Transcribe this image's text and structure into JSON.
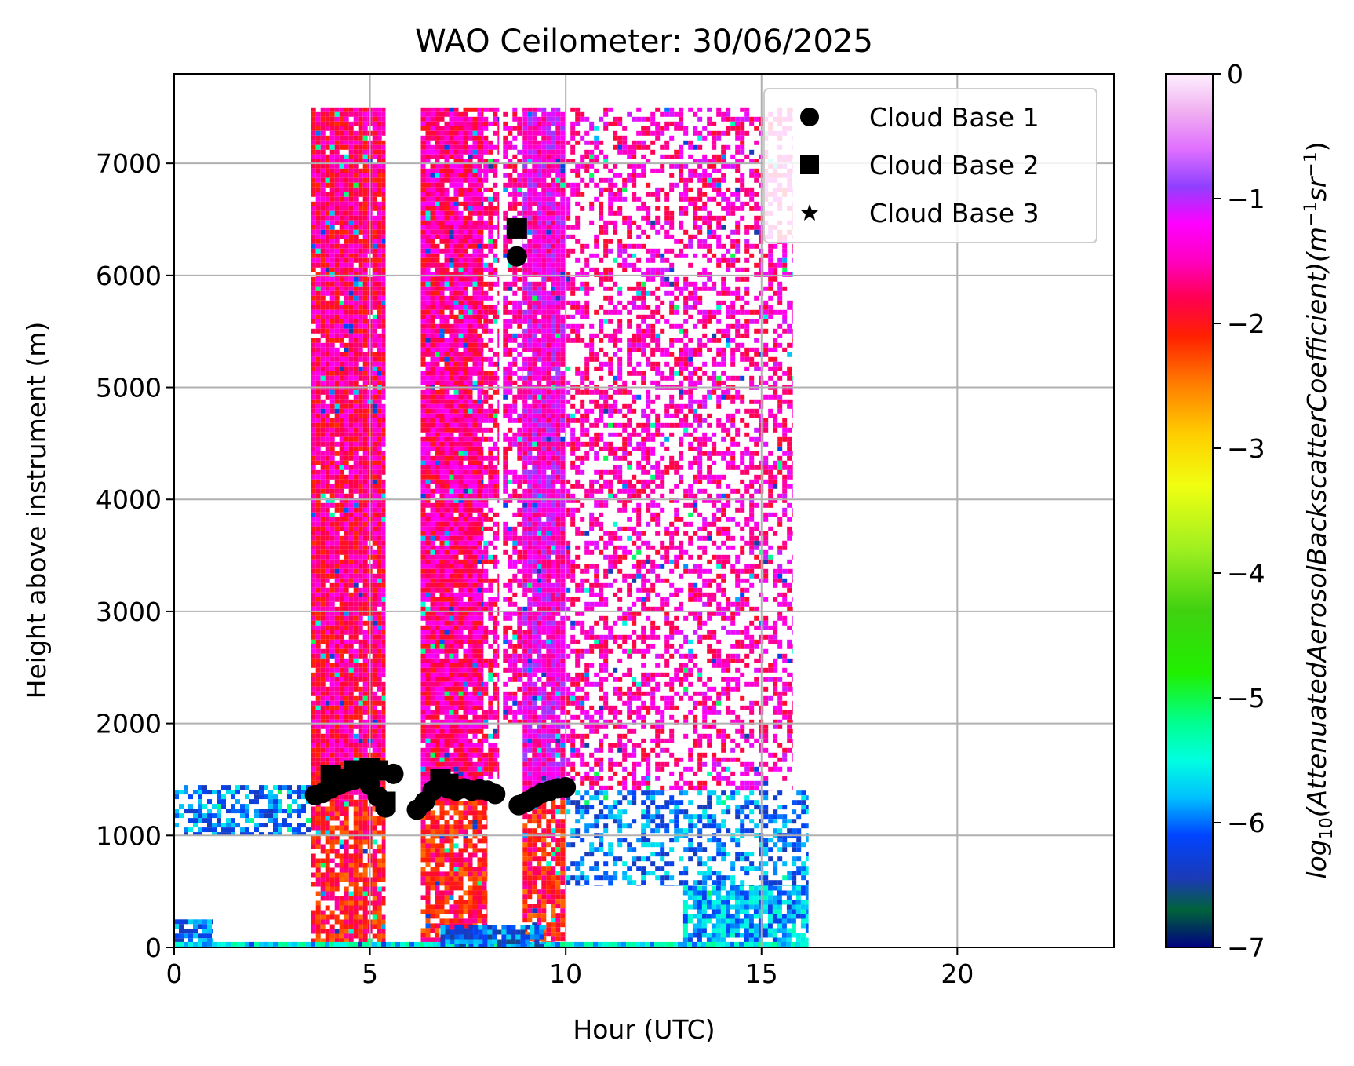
{
  "chart_data": {
    "type": "heatmap",
    "title": "WAO Ceilometer: 30/06/2025",
    "xlabel": "Hour (UTC)",
    "ylabel": "Height above instrument (m)",
    "xlim": [
      0,
      24
    ],
    "ylim": [
      0,
      7800
    ],
    "x_ticks": [
      0,
      5,
      10,
      15,
      20
    ],
    "x_tick_labels": [
      "0",
      "5",
      "10",
      "15",
      "20"
    ],
    "y_ticks": [
      0,
      1000,
      2000,
      3000,
      4000,
      5000,
      6000,
      7000
    ],
    "y_tick_labels": [
      "0",
      "1000",
      "2000",
      "3000",
      "4000",
      "5000",
      "6000",
      "7000"
    ],
    "grid": true,
    "legend_position": "top-right",
    "legend": [
      {
        "label": "Cloud Base 1",
        "marker": "circle"
      },
      {
        "label": "Cloud Base 2",
        "marker": "square"
      },
      {
        "label": "Cloud Base 3",
        "marker": "star"
      }
    ],
    "colorbar": {
      "label_func": "log",
      "label_sub": "10",
      "label_main": "(AttenuatedAerosolBackscatterCoefficient)",
      "label_unit_m": "(m",
      "label_unit_m_exp": "−1",
      "label_unit_sr": "sr",
      "label_unit_sr_exp": "−1",
      "label_unit_close": ")",
      "range": [
        -7,
        0
      ],
      "ticks": [
        0,
        -1,
        -2,
        -3,
        -4,
        -5,
        -6,
        -7
      ],
      "tick_labels": [
        "0",
        "−1",
        "−2",
        "−3",
        "−4",
        "−5",
        "−6",
        "−7"
      ],
      "colormap": "gist_ncar",
      "stops": [
        {
          "v": -7.0,
          "color": "#000080"
        },
        {
          "v": -6.7,
          "color": "#00633a"
        },
        {
          "v": -6.45,
          "color": "#1b3ab5"
        },
        {
          "v": -6.1,
          "color": "#0044ff"
        },
        {
          "v": -5.8,
          "color": "#00c0ff"
        },
        {
          "v": -5.5,
          "color": "#00ffe0"
        },
        {
          "v": -5.2,
          "color": "#00ff90"
        },
        {
          "v": -4.8,
          "color": "#20f000"
        },
        {
          "v": -4.3,
          "color": "#40d010"
        },
        {
          "v": -3.8,
          "color": "#a0f020"
        },
        {
          "v": -3.3,
          "color": "#f0ff10"
        },
        {
          "v": -2.9,
          "color": "#ffd000"
        },
        {
          "v": -2.5,
          "color": "#ff8000"
        },
        {
          "v": -2.1,
          "color": "#ff2000"
        },
        {
          "v": -1.8,
          "color": "#ff0050"
        },
        {
          "v": -1.5,
          "color": "#ff00c0"
        },
        {
          "v": -1.2,
          "color": "#ff00ff"
        },
        {
          "v": -0.9,
          "color": "#9040ff"
        },
        {
          "v": -0.6,
          "color": "#e070ff"
        },
        {
          "v": -0.3,
          "color": "#f0b0f0"
        },
        {
          "v": 0.0,
          "color": "#fef0fe"
        }
      ]
    },
    "backscatter_regions": [
      {
        "x": [
          3.5,
          5.4
        ],
        "y": [
          1300,
          7500
        ],
        "level": -1.7,
        "desc": "dense"
      },
      {
        "x": [
          6.3,
          7.9
        ],
        "y": [
          1350,
          7500
        ],
        "level": -1.6,
        "desc": "dense"
      },
      {
        "x": [
          7.9,
          8.3
        ],
        "y": [
          1500,
          7500
        ],
        "level": -1.6,
        "desc": "sparse"
      },
      {
        "x": [
          8.9,
          10.0
        ],
        "y": [
          1400,
          7500
        ],
        "level": -1.3,
        "desc": "dense"
      },
      {
        "x": [
          8.4,
          8.9
        ],
        "y": [
          2000,
          7500
        ],
        "level": -1.5,
        "desc": "sparse"
      },
      {
        "x": [
          10.0,
          15.8
        ],
        "y": [
          1400,
          7500
        ],
        "level": -1.5,
        "desc": "scattered"
      },
      {
        "x": [
          3.5,
          5.4
        ],
        "y": [
          0,
          1300
        ],
        "level": -2.0,
        "desc": "mixed"
      },
      {
        "x": [
          6.3,
          8.0
        ],
        "y": [
          0,
          1350
        ],
        "level": -2.0,
        "desc": "mixed"
      },
      {
        "x": [
          8.9,
          10.0
        ],
        "y": [
          0,
          1400
        ],
        "level": -2.0,
        "desc": "mixed"
      },
      {
        "x": [
          0.0,
          3.5
        ],
        "y": [
          1000,
          1450
        ],
        "level": -6.0,
        "desc": "boundary-layer"
      },
      {
        "x": [
          0.0,
          1.0
        ],
        "y": [
          0,
          250
        ],
        "level": -6.0,
        "desc": "surface"
      },
      {
        "x": [
          13.0,
          16.2
        ],
        "y": [
          0,
          550
        ],
        "level": -5.8,
        "desc": "surface"
      },
      {
        "x": [
          10.0,
          16.2
        ],
        "y": [
          550,
          1400
        ],
        "level": -6.0,
        "desc": "scattered"
      },
      {
        "x": [
          0.0,
          16.2
        ],
        "y": [
          0,
          50
        ],
        "level": -5.6,
        "desc": "surface-strip"
      },
      {
        "x": [
          6.8,
          9.5
        ],
        "y": [
          0,
          200
        ],
        "level": -6.1,
        "desc": "surface"
      }
    ],
    "series": [
      {
        "name": "Cloud Base 1",
        "marker": "circle",
        "x": [
          3.6,
          3.8,
          4.0,
          4.2,
          4.4,
          4.6,
          4.8,
          5.0,
          5.2,
          5.4,
          5.6,
          6.2,
          6.4,
          6.6,
          6.8,
          7.0,
          7.2,
          7.4,
          7.6,
          7.8,
          8.0,
          8.2,
          8.75,
          8.8,
          9.0,
          9.2,
          9.4,
          9.6,
          9.8,
          10.0
        ],
        "y": [
          1360,
          1380,
          1420,
          1450,
          1480,
          1500,
          1520,
          1450,
          1350,
          1250,
          1550,
          1230,
          1300,
          1400,
          1450,
          1420,
          1400,
          1420,
          1400,
          1410,
          1400,
          1370,
          6170,
          1270,
          1300,
          1340,
          1380,
          1400,
          1420,
          1430
        ]
      },
      {
        "name": "Cloud Base 2",
        "marker": "square",
        "x": [
          4.0,
          4.2,
          4.6,
          4.8,
          5.0,
          5.2,
          5.4,
          6.8,
          7.0,
          8.75
        ],
        "y": [
          1540,
          1500,
          1580,
          1560,
          1600,
          1580,
          1300,
          1500,
          1460,
          6420
        ]
      },
      {
        "name": "Cloud Base 3",
        "marker": "star",
        "x": [],
        "y": []
      }
    ]
  }
}
